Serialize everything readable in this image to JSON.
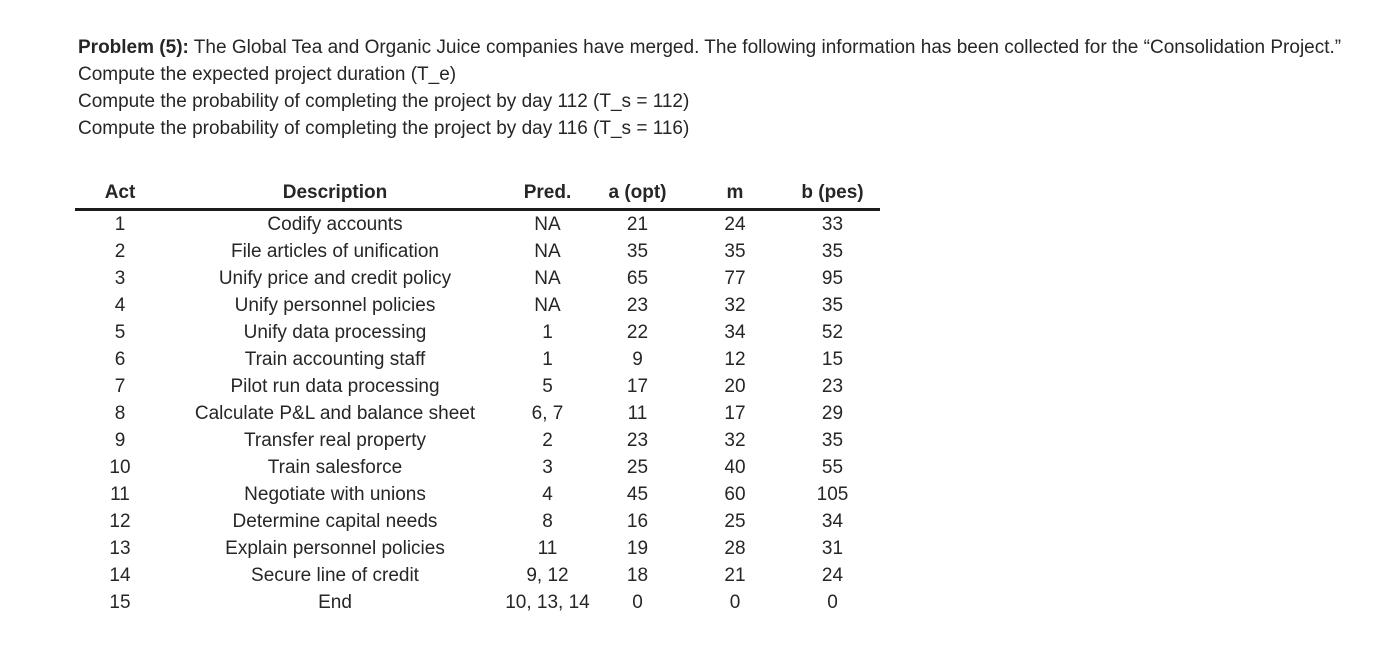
{
  "page": {
    "background": "#ffffff",
    "text_color": "#262626",
    "rule_color": "#1b1b1b"
  },
  "problem": {
    "label": "Problem (5):",
    "intro": "The Global Tea and Organic Juice companies have merged. The following information has been collected for the “Consolidation Project.”",
    "tasks": [
      "Compute the expected project duration (T_e)",
      "Compute the probability of completing the project by day 112 (T_s = 112)",
      "Compute the probability of completing the project by day 116 (T_s = 116)"
    ]
  },
  "table": {
    "headers": [
      "Act",
      "Description",
      "Pred.",
      "a (opt)",
      "m",
      "b (pes)"
    ],
    "rows": [
      [
        "1",
        "Codify accounts",
        "NA",
        "21",
        "24",
        "33"
      ],
      [
        "2",
        "File articles of unification",
        "NA",
        "35",
        "35",
        "35"
      ],
      [
        "3",
        "Unify price and credit policy",
        "NA",
        "65",
        "77",
        "95"
      ],
      [
        "4",
        "Unify personnel policies",
        "NA",
        "23",
        "32",
        "35"
      ],
      [
        "5",
        "Unify data processing",
        "1",
        "22",
        "34",
        "52"
      ],
      [
        "6",
        "Train accounting staff",
        "1",
        "9",
        "12",
        "15"
      ],
      [
        "7",
        "Pilot run data processing",
        "5",
        "17",
        "20",
        "23"
      ],
      [
        "8",
        "Calculate P&L and balance sheet",
        "6, 7",
        "11",
        "17",
        "29"
      ],
      [
        "9",
        "Transfer real property",
        "2",
        "23",
        "32",
        "35"
      ],
      [
        "10",
        "Train salesforce",
        "3",
        "25",
        "40",
        "55"
      ],
      [
        "11",
        "Negotiate with unions",
        "4",
        "45",
        "60",
        "105"
      ],
      [
        "12",
        "Determine capital needs",
        "8",
        "16",
        "25",
        "34"
      ],
      [
        "13",
        "Explain personnel policies",
        "11",
        "19",
        "28",
        "31"
      ],
      [
        "14",
        "Secure line of credit",
        "9, 12",
        "18",
        "21",
        "24"
      ],
      [
        "15",
        "End",
        "10, 13, 14",
        "0",
        "0",
        "0"
      ]
    ]
  }
}
